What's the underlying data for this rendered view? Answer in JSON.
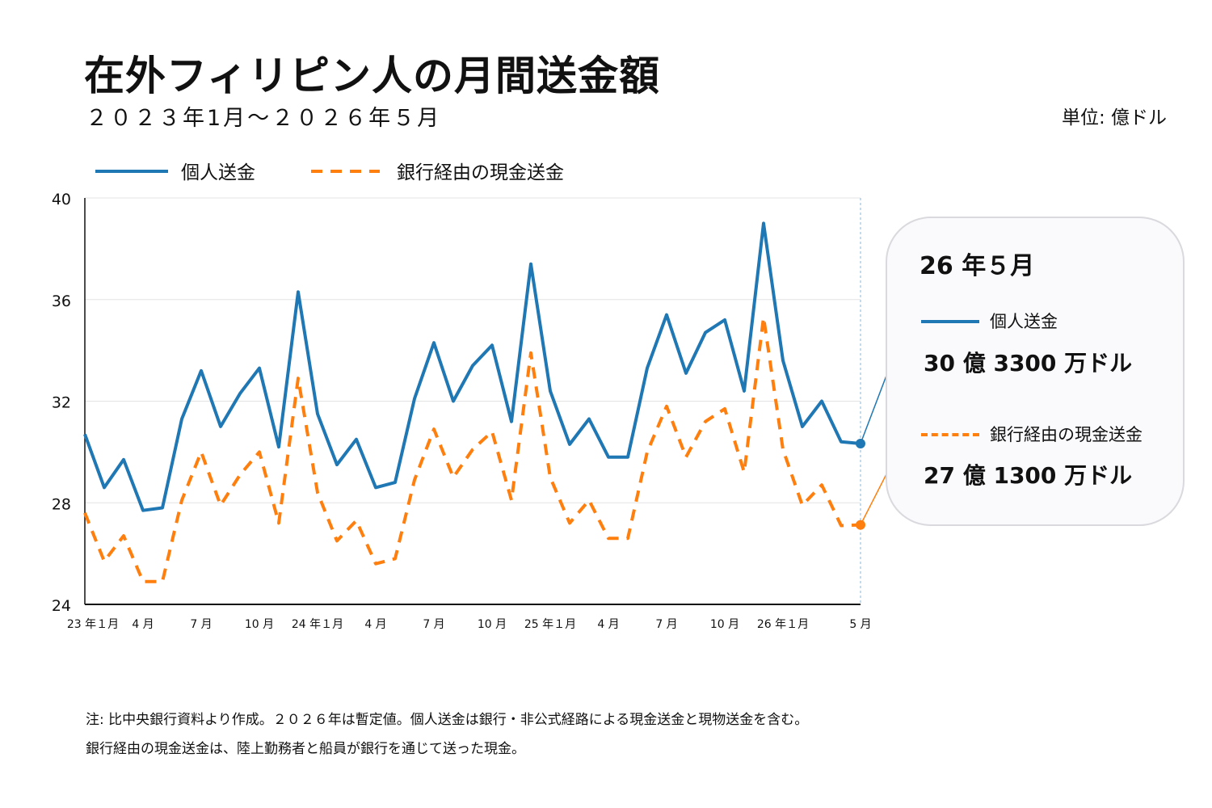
{
  "header": {
    "title": "在外フィリピン人の月間送金額",
    "subtitle": "２０２３年1月〜２０２６年５月",
    "unit": "単位:  億ドル"
  },
  "callout": {
    "period": "26 年５月",
    "items": [
      {
        "label": "個人送金",
        "value": "30 億 3300 万ドル"
      },
      {
        "label": "銀行経由の現金送金",
        "value": "27 億 1300 万ドル"
      }
    ]
  },
  "notes": [
    "注:  比中央銀行資料より作成。２０２６年は暫定値。個人送金は銀行・非公式経路による現金送金と現物送金を含む。",
    "銀行経由の現金送金は、陸上勤務者と船員が銀行を通じて送った現金。"
  ],
  "colors": {
    "personal": "#1f77b4",
    "cash": "#ff7f0e"
  },
  "chart_data": {
    "type": "line",
    "title": "在外フィリピン人の月間送金額",
    "subtitle": "２０２３年1月〜２０２６年５月",
    "ylabel": "",
    "ylim": [
      24,
      40
    ],
    "yticks": [
      24,
      28,
      32,
      36,
      40
    ],
    "x": [
      "2023-01",
      "2023-02",
      "2023-03",
      "2023-04",
      "2023-05",
      "2023-06",
      "2023-07",
      "2023-08",
      "2023-09",
      "2023-10",
      "2023-11",
      "2023-12",
      "2024-01",
      "2024-02",
      "2024-03",
      "2024-04",
      "2024-05",
      "2024-06",
      "2024-07",
      "2024-08",
      "2024-09",
      "2024-10",
      "2024-11",
      "2024-12",
      "2025-01",
      "2025-02",
      "2025-03",
      "2025-04",
      "2025-05",
      "2025-06",
      "2025-07",
      "2025-08",
      "2025-09",
      "2025-10",
      "2025-11",
      "2025-12",
      "2026-01",
      "2026-02",
      "2026-03",
      "2026-04",
      "2026-05"
    ],
    "xticks": [
      {
        "i": 0,
        "label": "23 年１月"
      },
      {
        "i": 3,
        "label": "4 月"
      },
      {
        "i": 6,
        "label": "7 月"
      },
      {
        "i": 9,
        "label": "10 月"
      },
      {
        "i": 12,
        "label": "24 年１月"
      },
      {
        "i": 15,
        "label": "4 月"
      },
      {
        "i": 18,
        "label": "7 月"
      },
      {
        "i": 21,
        "label": "10 月"
      },
      {
        "i": 24,
        "label": "25 年１月"
      },
      {
        "i": 27,
        "label": "4 月"
      },
      {
        "i": 30,
        "label": "7 月"
      },
      {
        "i": 33,
        "label": "10 月"
      },
      {
        "i": 36,
        "label": "26 年１月"
      },
      {
        "i": 40,
        "label": "5 月"
      }
    ],
    "series": [
      {
        "name": "個人送金",
        "style": "solid",
        "values": [
          30.7,
          28.6,
          29.7,
          27.7,
          27.8,
          31.3,
          33.2,
          31.0,
          32.3,
          33.3,
          30.2,
          36.3,
          31.5,
          29.5,
          30.5,
          28.6,
          28.8,
          32.1,
          34.3,
          32.0,
          33.4,
          34.2,
          31.2,
          37.4,
          32.4,
          30.3,
          31.3,
          29.8,
          29.8,
          33.3,
          35.4,
          33.1,
          34.7,
          35.2,
          32.4,
          39.0,
          33.6,
          31.0,
          32.0,
          30.4,
          30.33
        ]
      },
      {
        "name": "銀行経由の現金送金",
        "style": "dashed",
        "values": [
          27.6,
          25.7,
          26.7,
          24.9,
          24.9,
          28.1,
          30.0,
          27.9,
          29.1,
          30.0,
          27.2,
          32.9,
          28.4,
          26.5,
          27.3,
          25.6,
          25.8,
          28.9,
          30.9,
          29.0,
          30.1,
          30.8,
          28.1,
          33.9,
          29.0,
          27.2,
          28.1,
          26.6,
          26.6,
          30.0,
          31.8,
          29.8,
          31.2,
          31.7,
          29.2,
          35.3,
          30.1,
          27.9,
          28.7,
          27.1,
          27.13
        ]
      }
    ],
    "grid": true,
    "legend": "top-left"
  }
}
